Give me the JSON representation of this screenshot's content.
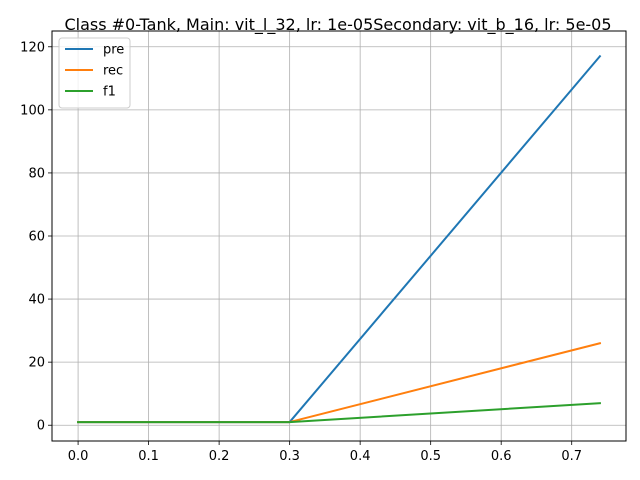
{
  "chart_data": {
    "type": "line",
    "title": "Class #0-Tank, Main: vit_l_32, lr: 1e-05Secondary: vit_b_16, lr: 5e-05",
    "xlabel": "",
    "ylabel": "",
    "xlim": [
      -0.037,
      0.777
    ],
    "ylim": [
      -5,
      125
    ],
    "x_ticks": [
      0.0,
      0.1,
      0.2,
      0.3,
      0.4,
      0.5,
      0.6,
      0.7
    ],
    "x_tick_labels": [
      "0.0",
      "0.1",
      "0.2",
      "0.3",
      "0.4",
      "0.5",
      "0.6",
      "0.7"
    ],
    "y_ticks": [
      0,
      20,
      40,
      60,
      80,
      100,
      120
    ],
    "y_tick_labels": [
      "0",
      "20",
      "40",
      "60",
      "80",
      "100",
      "120"
    ],
    "grid": true,
    "legend_position": "top-left",
    "series": [
      {
        "name": "pre",
        "color": "#1f77b4",
        "x": [
          0.0,
          0.3,
          0.74
        ],
        "y": [
          1,
          1,
          117
        ]
      },
      {
        "name": "rec",
        "color": "#ff7f0e",
        "x": [
          0.0,
          0.3,
          0.74
        ],
        "y": [
          1,
          1,
          26
        ]
      },
      {
        "name": "f1",
        "color": "#2ca02c",
        "x": [
          0.0,
          0.3,
          0.74
        ],
        "y": [
          1,
          1,
          7
        ]
      }
    ]
  }
}
